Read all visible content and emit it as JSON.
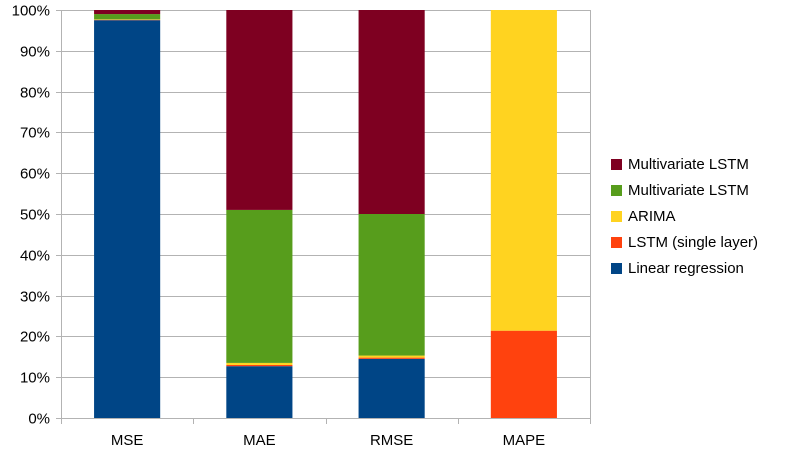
{
  "chart_data": {
    "type": "bar",
    "stacked": true,
    "percent_stacked": true,
    "categories": [
      "MSE",
      "MAE",
      "RMSE",
      "MAPE"
    ],
    "series": [
      {
        "name": "Linear regression",
        "color": "#004586",
        "values": [
          97.5,
          12.7,
          14.5,
          0
        ]
      },
      {
        "name": "LSTM (single layer)",
        "color": "#ff420e",
        "values": [
          0.1,
          0.3,
          0.3,
          21.4
        ]
      },
      {
        "name": "ARIMA",
        "color": "#ffd320",
        "values": [
          0.1,
          0.5,
          0.5,
          78.6
        ]
      },
      {
        "name": "Multivariate LSTM",
        "color": "#579d1c",
        "values": [
          1.3,
          37.5,
          34.7,
          0
        ]
      },
      {
        "name": "Multivariate LSTM",
        "color": "#7e0021",
        "values": [
          1.0,
          49.0,
          50.0,
          0
        ]
      }
    ],
    "y_ticks": [
      "0%",
      "10%",
      "20%",
      "30%",
      "40%",
      "50%",
      "60%",
      "70%",
      "80%",
      "90%",
      "100%"
    ],
    "ylim": [
      0,
      100
    ],
    "grid": true,
    "legend_position": "right"
  }
}
